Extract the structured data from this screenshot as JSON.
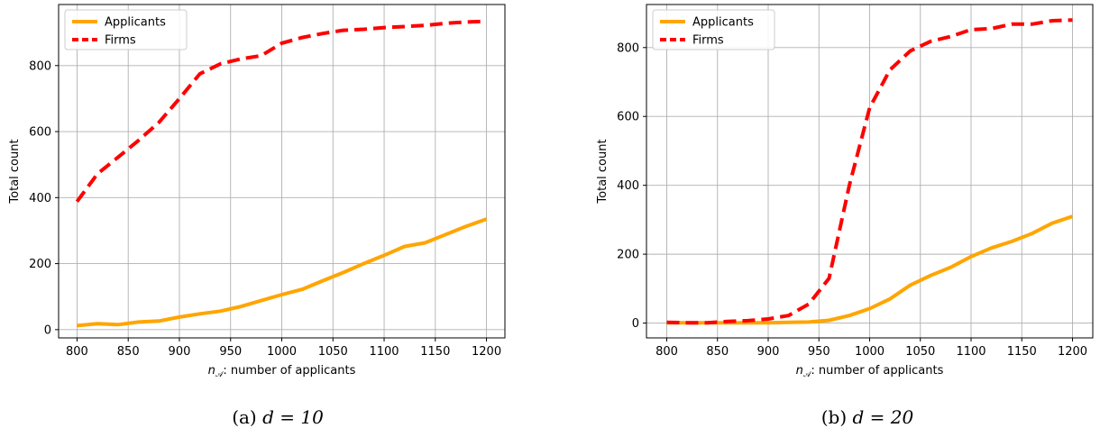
{
  "chart_data": [
    {
      "type": "line",
      "caption_prefix": "(a) ",
      "caption_math": "d = 10",
      "xlabel_math": "n",
      "xlabel_sub": "𝒜",
      "xlabel": ": number of applicants",
      "ylabel": "Total count",
      "xlim": [
        782,
        1218
      ],
      "ylim": [
        -25,
        985
      ],
      "xticks": [
        800,
        850,
        900,
        950,
        1000,
        1050,
        1100,
        1150,
        1200
      ],
      "yticks": [
        0,
        200,
        400,
        600,
        800
      ],
      "grid": true,
      "legend_position": "top-left",
      "x": [
        800,
        820,
        840,
        860,
        880,
        900,
        920,
        940,
        960,
        980,
        1000,
        1020,
        1040,
        1060,
        1080,
        1100,
        1120,
        1140,
        1160,
        1180,
        1200
      ],
      "series": [
        {
          "name": "Applicants",
          "color": "#FFA500",
          "style": "solid",
          "values": [
            12,
            18,
            15,
            23,
            26,
            38,
            48,
            56,
            70,
            88,
            106,
            122,
            148,
            173,
            200,
            225,
            252,
            263,
            288,
            313,
            335
          ]
        },
        {
          "name": "Firms",
          "color": "#FF0000",
          "style": "dashed",
          "values": [
            388,
            472,
            522,
            573,
            628,
            700,
            775,
            805,
            820,
            830,
            868,
            885,
            897,
            907,
            910,
            915,
            918,
            922,
            928,
            932,
            934
          ]
        }
      ]
    },
    {
      "type": "line",
      "caption_prefix": "(b) ",
      "caption_math": "d = 20",
      "xlabel_math": "n",
      "xlabel_sub": "𝒜",
      "xlabel": ": number of applicants",
      "ylabel": "Total count",
      "xlim": [
        780,
        1220
      ],
      "ylim": [
        -43,
        925
      ],
      "xticks": [
        800,
        850,
        900,
        950,
        1000,
        1050,
        1100,
        1150,
        1200
      ],
      "yticks": [
        0,
        200,
        400,
        600,
        800
      ],
      "grid": true,
      "legend_position": "top-left",
      "x": [
        800,
        820,
        840,
        860,
        880,
        900,
        920,
        940,
        960,
        980,
        1000,
        1020,
        1040,
        1060,
        1080,
        1100,
        1120,
        1140,
        1160,
        1180,
        1200
      ],
      "series": [
        {
          "name": "Applicants",
          "color": "#FFA500",
          "style": "solid",
          "values": [
            1,
            1,
            1,
            1,
            1,
            1,
            2,
            3,
            8,
            22,
            42,
            70,
            110,
            138,
            162,
            193,
            218,
            237,
            260,
            290,
            310
          ]
        },
        {
          "name": "Firms",
          "color": "#FF0000",
          "style": "dashed",
          "values": [
            2,
            1,
            1,
            5,
            7,
            12,
            22,
            55,
            130,
            400,
            625,
            735,
            790,
            818,
            832,
            852,
            855,
            868,
            868,
            878,
            880
          ]
        }
      ]
    }
  ]
}
